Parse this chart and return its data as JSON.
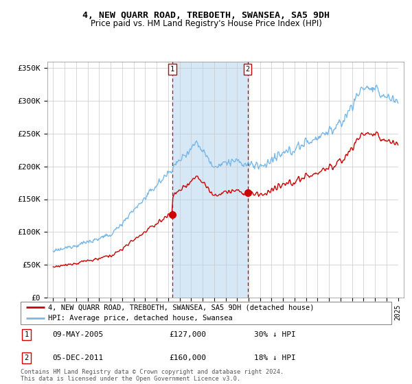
{
  "title": "4, NEW QUARR ROAD, TREBOETH, SWANSEA, SA5 9DH",
  "subtitle": "Price paid vs. HM Land Registry's House Price Index (HPI)",
  "ylabel_ticks": [
    "£0",
    "£50K",
    "£100K",
    "£150K",
    "£200K",
    "£250K",
    "£300K",
    "£350K"
  ],
  "ytick_values": [
    0,
    50000,
    100000,
    150000,
    200000,
    250000,
    300000,
    350000
  ],
  "ylim": [
    0,
    360000
  ],
  "xlim_start": 1994.5,
  "xlim_end": 2025.5,
  "sale1": {
    "date_num": 2005.36,
    "price": 127000,
    "label": "1",
    "date_str": "09-MAY-2005",
    "pct": "30% ↓ HPI"
  },
  "sale2": {
    "date_num": 2011.92,
    "price": 160000,
    "label": "2",
    "date_str": "05-DEC-2011",
    "pct": "18% ↓ HPI"
  },
  "hpi_color": "#7ab8e8",
  "sale_color": "#cc0000",
  "vline_color": "#cc0000",
  "shading_color": "#d6e8f5",
  "legend_address": "4, NEW QUARR ROAD, TREBOETH, SWANSEA, SA5 9DH (detached house)",
  "legend_hpi": "HPI: Average price, detached house, Swansea",
  "footer": "Contains HM Land Registry data © Crown copyright and database right 2024.\nThis data is licensed under the Open Government Licence v3.0.",
  "xtick_years": [
    1995,
    1996,
    1997,
    1998,
    1999,
    2000,
    2001,
    2002,
    2003,
    2004,
    2005,
    2006,
    2007,
    2008,
    2009,
    2010,
    2011,
    2012,
    2013,
    2014,
    2015,
    2016,
    2017,
    2018,
    2019,
    2020,
    2021,
    2022,
    2023,
    2024,
    2025
  ]
}
